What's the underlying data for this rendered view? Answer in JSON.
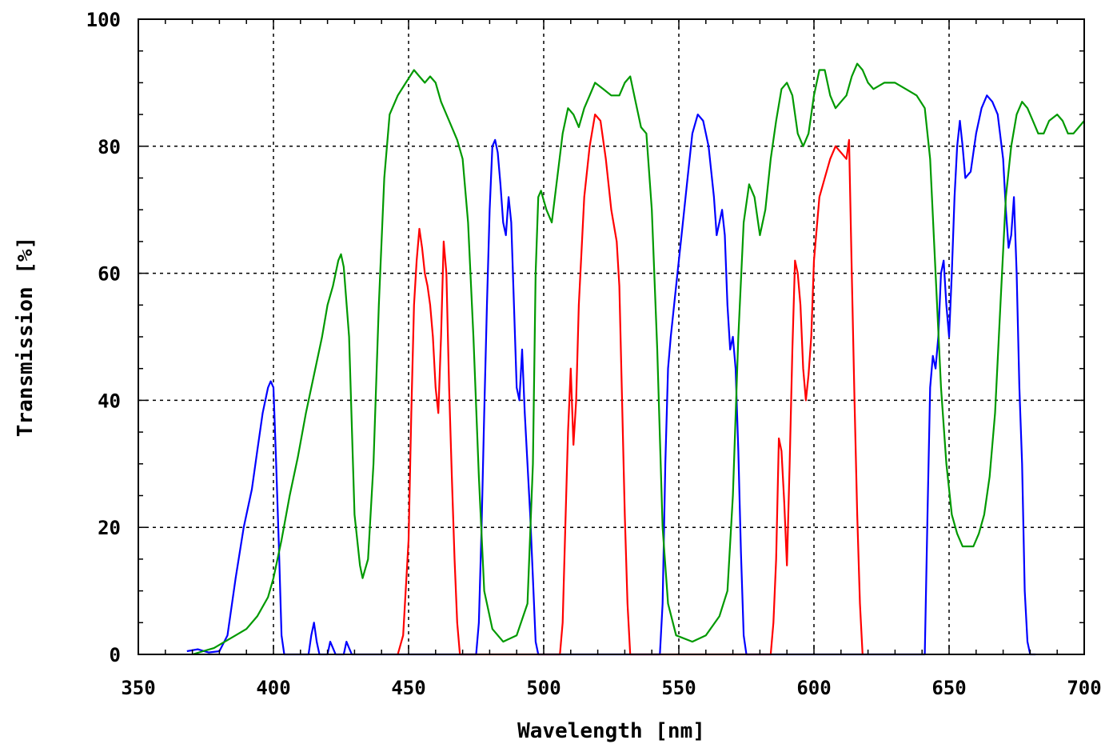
{
  "chart_data": {
    "type": "line",
    "title": "",
    "xlabel": "Wavelength [nm]",
    "ylabel": "Transmission [%]",
    "xlim": [
      350,
      700
    ],
    "ylim": [
      0,
      100
    ],
    "xticks": [
      350,
      400,
      450,
      500,
      550,
      600,
      650,
      700
    ],
    "yticks": [
      0,
      20,
      40,
      60,
      80,
      100
    ],
    "x_tick_labels": [
      "350",
      "400",
      "450",
      "500",
      "550",
      "600",
      "650",
      "700"
    ],
    "y_tick_labels": [
      "0",
      "20",
      "40",
      "60",
      "80",
      "100"
    ],
    "grid": true,
    "legend": "none",
    "series": [
      {
        "color": "#0000ff",
        "points": [
          [
            368,
            0.5
          ],
          [
            372,
            0.8
          ],
          [
            376,
            0.3
          ],
          [
            380,
            0.5
          ],
          [
            383,
            3
          ],
          [
            386,
            12
          ],
          [
            389,
            20
          ],
          [
            392,
            26
          ],
          [
            394,
            32
          ],
          [
            396,
            38
          ],
          [
            398,
            42
          ],
          [
            399,
            43
          ],
          [
            400,
            42
          ],
          [
            401,
            30
          ],
          [
            402,
            17
          ],
          [
            403,
            3
          ],
          [
            404,
            0
          ],
          [
            413,
            0
          ],
          [
            414,
            3
          ],
          [
            415,
            5
          ],
          [
            416,
            2
          ],
          [
            417,
            0
          ],
          [
            420,
            0
          ],
          [
            421,
            2
          ],
          [
            422,
            1
          ],
          [
            423,
            0
          ],
          [
            426,
            0
          ],
          [
            427,
            2
          ],
          [
            428,
            1
          ],
          [
            429,
            0
          ],
          [
            475,
            0
          ],
          [
            476,
            5
          ],
          [
            477,
            20
          ],
          [
            478,
            38
          ],
          [
            479,
            55
          ],
          [
            480,
            70
          ],
          [
            481,
            80
          ],
          [
            482,
            81
          ],
          [
            483,
            79
          ],
          [
            484,
            74
          ],
          [
            485,
            68
          ],
          [
            486,
            66
          ],
          [
            487,
            72
          ],
          [
            488,
            68
          ],
          [
            489,
            55
          ],
          [
            490,
            42
          ],
          [
            491,
            40
          ],
          [
            492,
            48
          ],
          [
            493,
            38
          ],
          [
            494,
            30
          ],
          [
            495,
            22
          ],
          [
            496,
            12
          ],
          [
            497,
            2
          ],
          [
            498,
            0
          ],
          [
            543,
            0
          ],
          [
            544,
            8
          ],
          [
            545,
            30
          ],
          [
            546,
            45
          ],
          [
            547,
            50
          ],
          [
            549,
            58
          ],
          [
            551,
            66
          ],
          [
            553,
            74
          ],
          [
            555,
            82
          ],
          [
            557,
            85
          ],
          [
            559,
            84
          ],
          [
            561,
            80
          ],
          [
            563,
            72
          ],
          [
            564,
            66
          ],
          [
            565,
            68
          ],
          [
            566,
            70
          ],
          [
            567,
            66
          ],
          [
            568,
            55
          ],
          [
            569,
            48
          ],
          [
            570,
            50
          ],
          [
            571,
            45
          ],
          [
            572,
            32
          ],
          [
            573,
            16
          ],
          [
            574,
            3
          ],
          [
            575,
            0
          ],
          [
            641,
            0
          ],
          [
            642,
            22
          ],
          [
            643,
            42
          ],
          [
            644,
            47
          ],
          [
            645,
            45
          ],
          [
            646,
            50
          ],
          [
            647,
            60
          ],
          [
            648,
            62
          ],
          [
            649,
            55
          ],
          [
            650,
            50
          ],
          [
            651,
            60
          ],
          [
            652,
            72
          ],
          [
            653,
            80
          ],
          [
            654,
            84
          ],
          [
            655,
            80
          ],
          [
            656,
            75
          ],
          [
            658,
            76
          ],
          [
            660,
            82
          ],
          [
            662,
            86
          ],
          [
            664,
            88
          ],
          [
            666,
            87
          ],
          [
            668,
            85
          ],
          [
            670,
            78
          ],
          [
            671,
            70
          ],
          [
            672,
            64
          ],
          [
            673,
            66
          ],
          [
            674,
            72
          ],
          [
            675,
            60
          ],
          [
            676,
            42
          ],
          [
            677,
            30
          ],
          [
            678,
            10
          ],
          [
            679,
            2
          ],
          [
            680,
            0
          ],
          [
            682,
            0
          ]
        ]
      },
      {
        "color": "#ff0000",
        "points": [
          [
            446,
            0
          ],
          [
            448,
            3
          ],
          [
            450,
            18
          ],
          [
            451,
            38
          ],
          [
            452,
            55
          ],
          [
            453,
            62
          ],
          [
            454,
            67
          ],
          [
            455,
            64
          ],
          [
            456,
            60
          ],
          [
            457,
            58
          ],
          [
            458,
            55
          ],
          [
            459,
            50
          ],
          [
            460,
            42
          ],
          [
            461,
            38
          ],
          [
            462,
            50
          ],
          [
            463,
            65
          ],
          [
            464,
            60
          ],
          [
            465,
            42
          ],
          [
            466,
            28
          ],
          [
            467,
            15
          ],
          [
            468,
            5
          ],
          [
            469,
            0
          ],
          [
            506,
            0
          ],
          [
            507,
            5
          ],
          [
            508,
            20
          ],
          [
            509,
            35
          ],
          [
            510,
            45
          ],
          [
            511,
            33
          ],
          [
            512,
            40
          ],
          [
            513,
            55
          ],
          [
            515,
            72
          ],
          [
            517,
            80
          ],
          [
            519,
            85
          ],
          [
            521,
            84
          ],
          [
            523,
            78
          ],
          [
            525,
            70
          ],
          [
            527,
            65
          ],
          [
            528,
            58
          ],
          [
            529,
            40
          ],
          [
            530,
            22
          ],
          [
            531,
            8
          ],
          [
            532,
            0
          ],
          [
            584,
            0
          ],
          [
            585,
            5
          ],
          [
            586,
            15
          ],
          [
            587,
            34
          ],
          [
            588,
            32
          ],
          [
            589,
            24
          ],
          [
            590,
            14
          ],
          [
            591,
            30
          ],
          [
            592,
            48
          ],
          [
            593,
            62
          ],
          [
            594,
            60
          ],
          [
            595,
            55
          ],
          [
            596,
            45
          ],
          [
            597,
            40
          ],
          [
            598,
            44
          ],
          [
            599,
            50
          ],
          [
            600,
            62
          ],
          [
            602,
            72
          ],
          [
            604,
            75
          ],
          [
            606,
            78
          ],
          [
            608,
            80
          ],
          [
            610,
            79
          ],
          [
            612,
            78
          ],
          [
            613,
            81
          ],
          [
            614,
            60
          ],
          [
            615,
            40
          ],
          [
            616,
            22
          ],
          [
            617,
            8
          ],
          [
            618,
            0
          ]
        ]
      },
      {
        "color": "#009900",
        "points": [
          [
            370,
            0
          ],
          [
            374,
            0.5
          ],
          [
            378,
            1
          ],
          [
            382,
            2
          ],
          [
            386,
            3
          ],
          [
            390,
            4
          ],
          [
            394,
            6
          ],
          [
            398,
            9
          ],
          [
            400,
            12
          ],
          [
            403,
            18
          ],
          [
            406,
            25
          ],
          [
            409,
            31
          ],
          [
            412,
            38
          ],
          [
            415,
            44
          ],
          [
            418,
            50
          ],
          [
            420,
            55
          ],
          [
            422,
            58
          ],
          [
            424,
            62
          ],
          [
            425,
            63
          ],
          [
            426,
            61
          ],
          [
            428,
            50
          ],
          [
            430,
            22
          ],
          [
            432,
            14
          ],
          [
            433,
            12
          ],
          [
            435,
            15
          ],
          [
            437,
            30
          ],
          [
            439,
            55
          ],
          [
            441,
            75
          ],
          [
            443,
            85
          ],
          [
            446,
            88
          ],
          [
            449,
            90
          ],
          [
            452,
            92
          ],
          [
            454,
            91
          ],
          [
            456,
            90
          ],
          [
            458,
            91
          ],
          [
            460,
            90
          ],
          [
            462,
            87
          ],
          [
            465,
            84
          ],
          [
            468,
            81
          ],
          [
            470,
            78
          ],
          [
            472,
            68
          ],
          [
            474,
            50
          ],
          [
            476,
            28
          ],
          [
            478,
            10
          ],
          [
            481,
            4
          ],
          [
            485,
            2
          ],
          [
            490,
            3
          ],
          [
            494,
            8
          ],
          [
            496,
            30
          ],
          [
            497,
            60
          ],
          [
            498,
            72
          ],
          [
            499,
            73
          ],
          [
            501,
            70
          ],
          [
            503,
            68
          ],
          [
            505,
            75
          ],
          [
            507,
            82
          ],
          [
            509,
            86
          ],
          [
            511,
            85
          ],
          [
            513,
            83
          ],
          [
            515,
            86
          ],
          [
            517,
            88
          ],
          [
            519,
            90
          ],
          [
            522,
            89
          ],
          [
            525,
            88
          ],
          [
            528,
            88
          ],
          [
            530,
            90
          ],
          [
            532,
            91
          ],
          [
            534,
            87
          ],
          [
            536,
            83
          ],
          [
            538,
            82
          ],
          [
            540,
            70
          ],
          [
            542,
            48
          ],
          [
            544,
            20
          ],
          [
            546,
            8
          ],
          [
            549,
            3
          ],
          [
            555,
            2
          ],
          [
            560,
            3
          ],
          [
            565,
            6
          ],
          [
            568,
            10
          ],
          [
            570,
            25
          ],
          [
            572,
            50
          ],
          [
            574,
            68
          ],
          [
            576,
            74
          ],
          [
            578,
            72
          ],
          [
            580,
            66
          ],
          [
            582,
            70
          ],
          [
            584,
            78
          ],
          [
            586,
            84
          ],
          [
            588,
            89
          ],
          [
            590,
            90
          ],
          [
            592,
            88
          ],
          [
            594,
            82
          ],
          [
            596,
            80
          ],
          [
            598,
            82
          ],
          [
            600,
            88
          ],
          [
            602,
            92
          ],
          [
            604,
            92
          ],
          [
            606,
            88
          ],
          [
            608,
            86
          ],
          [
            610,
            87
          ],
          [
            612,
            88
          ],
          [
            614,
            91
          ],
          [
            616,
            93
          ],
          [
            618,
            92
          ],
          [
            620,
            90
          ],
          [
            622,
            89
          ],
          [
            626,
            90
          ],
          [
            630,
            90
          ],
          [
            634,
            89
          ],
          [
            638,
            88
          ],
          [
            641,
            86
          ],
          [
            643,
            78
          ],
          [
            645,
            60
          ],
          [
            647,
            42
          ],
          [
            649,
            30
          ],
          [
            651,
            22
          ],
          [
            653,
            19
          ],
          [
            655,
            17
          ],
          [
            657,
            17
          ],
          [
            659,
            17
          ],
          [
            661,
            19
          ],
          [
            663,
            22
          ],
          [
            665,
            28
          ],
          [
            667,
            38
          ],
          [
            669,
            55
          ],
          [
            671,
            72
          ],
          [
            673,
            80
          ],
          [
            675,
            85
          ],
          [
            677,
            87
          ],
          [
            679,
            86
          ],
          [
            681,
            84
          ],
          [
            683,
            82
          ],
          [
            685,
            82
          ],
          [
            687,
            84
          ],
          [
            690,
            85
          ],
          [
            692,
            84
          ],
          [
            694,
            82
          ],
          [
            696,
            82
          ],
          [
            698,
            83
          ],
          [
            700,
            84
          ]
        ]
      }
    ]
  }
}
